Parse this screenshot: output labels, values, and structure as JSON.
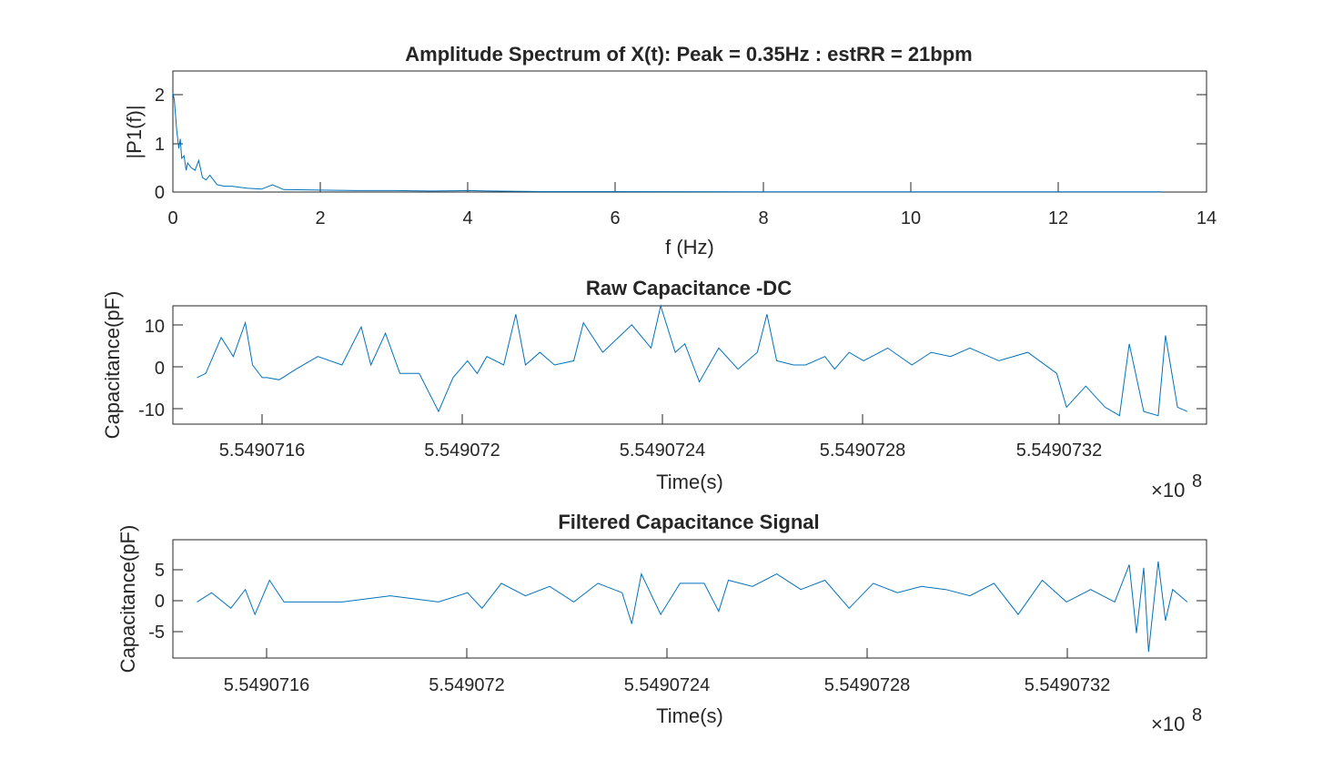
{
  "chart_data": [
    {
      "type": "line",
      "title": "Amplitude Spectrum of X(t): Peak = 0.35Hz : estRR = 21bpm",
      "xlabel": "f (Hz)",
      "ylabel": "|P1(f)|",
      "xlim": [
        0,
        14
      ],
      "ylim": [
        0,
        2.5
      ],
      "xticks": [
        0,
        2,
        4,
        6,
        8,
        10,
        12,
        14
      ],
      "xtick_labels": [
        "0",
        "2",
        "4",
        "6",
        "8",
        "10",
        "12",
        "14"
      ],
      "yticks": [
        0,
        1,
        2
      ],
      "ytick_labels": [
        "0",
        "1",
        "2"
      ],
      "color": "#0072BD",
      "grid": false,
      "series": [
        {
          "x": [
            0,
            0.02,
            0.05,
            0.08,
            0.1,
            0.12,
            0.15,
            0.18,
            0.2,
            0.25,
            0.3,
            0.35,
            0.4,
            0.45,
            0.5,
            0.6,
            0.7,
            0.8,
            1.0,
            1.2,
            1.35,
            1.5,
            2.0,
            2.5,
            3.0,
            3.5,
            4.0,
            4.3,
            5.0,
            6.0,
            8.0,
            10.0,
            12.0,
            13.4
          ],
          "y": [
            2.05,
            1.9,
            1.3,
            0.9,
            1.1,
            0.7,
            0.75,
            0.45,
            0.6,
            0.5,
            0.45,
            0.65,
            0.3,
            0.25,
            0.35,
            0.15,
            0.12,
            0.12,
            0.08,
            0.06,
            0.15,
            0.05,
            0.04,
            0.03,
            0.03,
            0.02,
            0.03,
            0.02,
            0.01,
            0.01,
            0.005,
            0.005,
            0.005,
            0.005
          ]
        }
      ]
    },
    {
      "type": "line",
      "title": "Raw Capacitance -DC",
      "xlabel": "Time(s)",
      "ylabel": "Capacitance(pF)",
      "x_exponent": "×10",
      "x_exponent_power": "8",
      "xlim": [
        5.54907135,
        5.54907349
      ],
      "ylim": [
        -14,
        14
      ],
      "xticks": [
        5.5490716,
        5.549072,
        5.5490724,
        5.5490728,
        5.5490732
      ],
      "xtick_labels": [
        "5.5490716",
        "5.549072",
        "5.5490724",
        "5.5490728",
        "5.5490732"
      ],
      "yticks": [
        -10,
        0,
        10
      ],
      "ytick_labels": [
        "-10",
        "0",
        "10"
      ],
      "color": "#0072BD",
      "grid": false,
      "series": [
        {
          "x": [
            5.5490714,
            5.549071418,
            5.54907145,
            5.549071475,
            5.5490715,
            5.549071515,
            5.549071535,
            5.549071545,
            5.54907157,
            5.549071605,
            5.54907165,
            5.5490717,
            5.54907174,
            5.54907176,
            5.54907179,
            5.54907182,
            5.54907186,
            5.5490719,
            5.54907193,
            5.54907196,
            5.54907198,
            5.549072,
            5.549072035,
            5.54907206,
            5.54907208,
            5.54907211,
            5.54907214,
            5.54907218,
            5.5490722,
            5.54907224,
            5.5490723,
            5.54907234,
            5.54907236,
            5.54907239,
            5.54907241,
            5.54907244,
            5.54907248,
            5.54907252,
            5.54907256,
            5.54907258,
            5.5490726,
            5.549072635,
            5.54907266,
            5.5490727,
            5.54907272,
            5.54907275,
            5.54907278,
            5.54907283,
            5.54907288,
            5.54907292,
            5.54907296,
            5.549073,
            5.54907306,
            5.54907312,
            5.54907318,
            5.5490732,
            5.54907324,
            5.54907328,
            5.54907331,
            5.54907333,
            5.54907336,
            5.54907339,
            5.549073405,
            5.54907343,
            5.54907345
          ],
          "y": [
            -3,
            -2,
            6.5,
            2,
            10,
            0,
            -3,
            -3,
            -3.5,
            -1,
            2,
            0,
            9,
            0,
            7.5,
            -2,
            -2,
            -11,
            -3,
            1,
            -2,
            2,
            0,
            12,
            0,
            3,
            0,
            1,
            10,
            3,
            9.5,
            4,
            14,
            3,
            5,
            -4,
            4,
            -1,
            3,
            12,
            1,
            0,
            0,
            2,
            -1,
            3,
            1,
            4,
            0,
            3,
            2,
            4,
            1,
            3,
            -2,
            -10,
            -5,
            -10,
            -12,
            5,
            -11,
            -12,
            7,
            -10,
            -11
          ]
        }
      ]
    },
    {
      "type": "line",
      "title": "Filtered Capacitance Signal",
      "xlabel": "Time(s)",
      "ylabel": "Capacitance(pF)",
      "x_exponent": "×10",
      "x_exponent_power": "8",
      "xlim": [
        5.54907135,
        5.54907349
      ],
      "ylim": [
        -9,
        10
      ],
      "xticks": [
        5.5490716,
        5.549072,
        5.5490724,
        5.5490728,
        5.5490732
      ],
      "xtick_labels": [
        "5.5490716",
        "5.549072",
        "5.5490724",
        "5.5490728",
        "5.5490732"
      ],
      "yticks": [
        -5,
        0,
        5
      ],
      "ytick_labels": [
        "-5",
        "0",
        "5"
      ],
      "color": "#0072BD",
      "grid": false,
      "series": [
        {
          "x": [
            5.5490714,
            5.54907143,
            5.54907147,
            5.5490715,
            5.54907152,
            5.54907155,
            5.54907158,
            5.54907165,
            5.5490717,
            5.5490718,
            5.5490719,
            5.54907196,
            5.54907199,
            5.54907203,
            5.54907208,
            5.54907213,
            5.54907218,
            5.54907223,
            5.54907228,
            5.5490723,
            5.54907232,
            5.54907236,
            5.5490724,
            5.54907245,
            5.54907248,
            5.5490725,
            5.54907255,
            5.5490726,
            5.54907265,
            5.5490727,
            5.54907275,
            5.5490728,
            5.54907285,
            5.5490729,
            5.54907295,
            5.549073,
            5.54907305,
            5.5490731,
            5.54907315,
            5.5490732,
            5.54907325,
            5.5490733,
            5.54907333,
            5.549073345,
            5.54907336,
            5.54907337,
            5.54907339,
            5.549073405,
            5.54907342,
            5.54907345
          ],
          "y": [
            0,
            1.5,
            -1,
            2,
            -2,
            3.5,
            0,
            0,
            0,
            1,
            0,
            1.5,
            -1,
            3,
            1,
            2.5,
            0,
            3,
            1.5,
            -3.5,
            4.5,
            -2,
            3,
            3,
            -1.5,
            3.5,
            2.5,
            4.5,
            2,
            3.5,
            -1,
            3,
            1.5,
            2.5,
            2,
            1,
            3,
            -2,
            3.5,
            0,
            2,
            0,
            6,
            -5,
            5.5,
            -8,
            6.5,
            -3,
            2,
            0
          ]
        }
      ]
    }
  ]
}
